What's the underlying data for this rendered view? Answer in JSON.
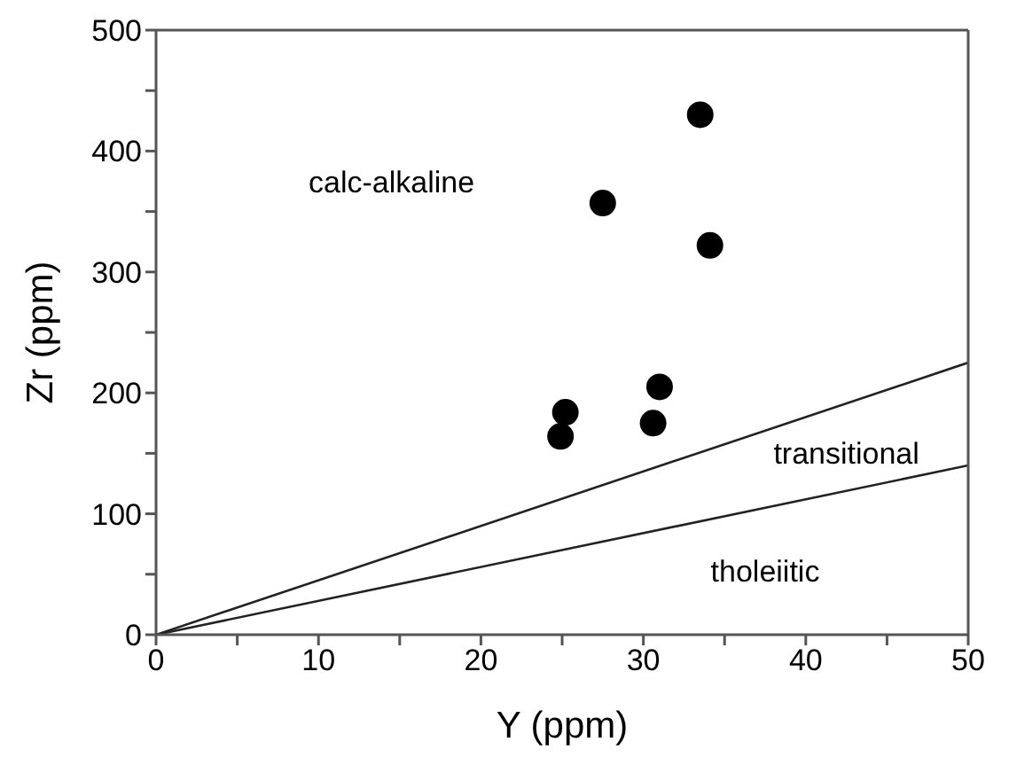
{
  "chart_data": {
    "type": "scatter",
    "xlabel": "Y (ppm)",
    "ylabel": "Zr (ppm)",
    "xlim": [
      0,
      50
    ],
    "ylim": [
      0,
      500
    ],
    "xticks": [
      0,
      {
        "value": 5,
        "label": null
      },
      10,
      {
        "value": 15,
        "label": null
      },
      20,
      {
        "value": 25,
        "label": null
      },
      30,
      {
        "value": 35,
        "label": null
      },
      40,
      {
        "value": 45,
        "label": null
      },
      50
    ],
    "yticks": [
      0,
      {
        "value": 50,
        "label": null
      },
      100,
      {
        "value": 150,
        "label": null
      },
      200,
      {
        "value": 250,
        "label": null
      },
      300,
      {
        "value": 350,
        "label": null
      },
      400,
      {
        "value": 450,
        "label": null
      },
      500
    ],
    "grid": false,
    "legend": false,
    "series": [
      {
        "color": "#000000",
        "marker": "circle",
        "x": [
          33.5,
          27.5,
          34.1,
          31.0,
          25.2,
          30.6,
          24.9
        ],
        "values": [
          430,
          357,
          322,
          205,
          184,
          175,
          164
        ]
      },
      {
        "type": "line",
        "color": "#222222",
        "marker": "none",
        "line_style": "solid",
        "x": [
          0,
          50
        ],
        "values": [
          0,
          225
        ]
      },
      {
        "type": "line",
        "color": "#222222",
        "marker": "none",
        "line_style": "solid",
        "x": [
          0,
          50
        ],
        "values": [
          0,
          140
        ]
      }
    ],
    "annotations": [
      "calc-alkaline",
      "transitional",
      "tholeiitic"
    ]
  }
}
